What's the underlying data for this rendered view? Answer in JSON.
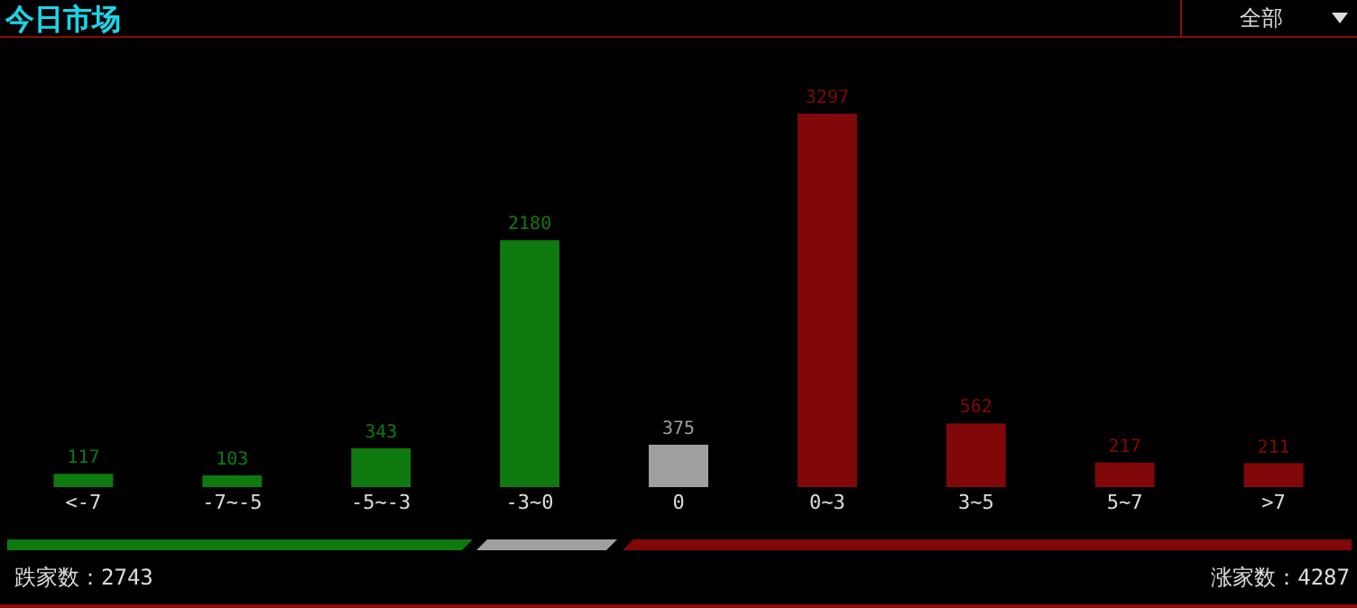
{
  "chart_data": {
    "type": "bar",
    "title": "今日市场",
    "categories": [
      "<-7",
      "-7~-5",
      "-5~-3",
      "-3~0",
      "0",
      "0~3",
      "3~5",
      "5~7",
      ">7"
    ],
    "values": [
      117,
      103,
      343,
      2180,
      375,
      3297,
      562,
      217,
      211
    ],
    "colors": [
      "#0f7a0f",
      "#0f7a0f",
      "#0f7a0f",
      "#0f7a0f",
      "#a0a0a0",
      "#800808",
      "#800808",
      "#800808",
      "#800808"
    ],
    "data_labels": true,
    "annotations": [
      "跌家数：2743",
      "涨家数：4287",
      "全部"
    ]
  }
}
